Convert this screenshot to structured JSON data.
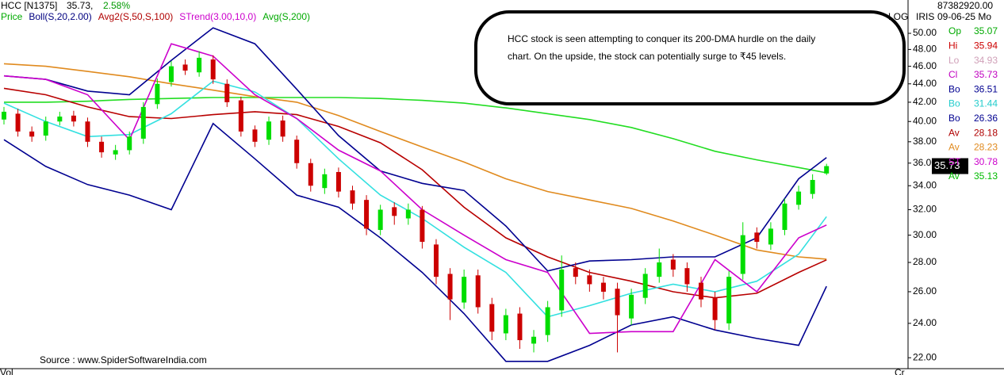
{
  "chart_data": {
    "type": "candlestick",
    "header": {
      "symbol": "HCC [N1375]",
      "last": "35.73,",
      "change": "2.58%",
      "change_color": "#009900"
    },
    "legend": [
      {
        "label": "Price",
        "color": "#00aa00"
      },
      {
        "label": "Boll(S,20,2.00)",
        "color": "#000080"
      },
      {
        "label": "Avg2(S,50,S,100)",
        "color": "#b00000"
      },
      {
        "label": "STrend(3.00,10,0)",
        "color": "#cc00cc"
      },
      {
        "label": "Avg(S,200)",
        "color": "#00aa00"
      }
    ],
    "log_scale": true,
    "scale_labels": [
      "LOG",
      "IRIS"
    ],
    "ylim": [
      21.4,
      54.4
    ],
    "yticks": [
      {
        "value": 22,
        "label": "22.00"
      },
      {
        "value": 24,
        "label": "24.00"
      },
      {
        "value": 26,
        "label": "26.00"
      },
      {
        "value": 28,
        "label": "28.00"
      },
      {
        "value": 30,
        "label": "30.00"
      },
      {
        "value": 32,
        "label": "32.00"
      },
      {
        "value": 34,
        "label": "34.00"
      },
      {
        "value": 36,
        "label": "36.00"
      },
      {
        "value": 38,
        "label": "38.00"
      },
      {
        "value": 40,
        "label": "40.00"
      },
      {
        "value": 42,
        "label": "42.00"
      },
      {
        "value": 44,
        "label": "44.00"
      },
      {
        "value": 46,
        "label": "46.00"
      },
      {
        "value": 48,
        "label": "48.00"
      },
      {
        "value": 50,
        "label": "50.00"
      }
    ],
    "up_color": "#00dd00",
    "down_color": "#cc0000",
    "open": [
      40.2,
      40.8,
      39.0,
      38.6,
      40.0,
      40.6,
      40.0,
      38.0,
      36.8,
      37.2,
      38.3,
      41.8,
      44.2,
      46.2,
      45.3,
      46.8,
      44.0,
      42.2,
      39.2,
      38.2,
      40.1,
      38.2,
      36.0,
      33.8,
      35.2,
      33.6,
      32.8,
      30.4,
      32.2,
      31.3,
      32.0,
      29.3,
      27.2,
      25.3,
      27.1,
      25.2,
      23.4,
      24.6,
      22.8,
      23.3,
      24.8,
      27.6,
      27.1,
      26.6,
      26.2,
      24.3,
      25.6,
      27.0,
      28.2,
      27.6,
      26.6,
      25.6,
      24.0,
      27.2,
      30.2,
      29.3,
      30.4,
      32.4,
      33.3,
      35.07
    ],
    "high": [
      41.5,
      41.3,
      39.5,
      40.5,
      41.0,
      41.1,
      40.4,
      38.5,
      37.7,
      39.0,
      42.0,
      44.6,
      46.6,
      46.8,
      47.8,
      47.3,
      44.5,
      42.6,
      39.6,
      40.5,
      40.6,
      38.6,
      36.4,
      35.5,
      35.6,
      34.0,
      33.2,
      32.4,
      32.6,
      32.5,
      32.3,
      29.7,
      27.6,
      27.5,
      27.5,
      25.6,
      24.9,
      25.0,
      23.6,
      25.4,
      28.5,
      28.0,
      27.5,
      27.0,
      26.6,
      26.2,
      27.6,
      29.0,
      28.6,
      28.0,
      27.0,
      26.0,
      27.4,
      31.0,
      30.6,
      31.0,
      32.9,
      34.0,
      35.0,
      35.94
    ],
    "low": [
      39.7,
      38.5,
      38.0,
      38.1,
      39.6,
      39.5,
      37.5,
      36.5,
      36.3,
      36.8,
      37.8,
      41.3,
      43.7,
      45.0,
      44.8,
      44.0,
      41.5,
      38.5,
      37.5,
      37.7,
      38.0,
      35.5,
      33.5,
      33.3,
      33.0,
      32.0,
      30.0,
      30.0,
      30.8,
      30.8,
      29.0,
      26.5,
      24.2,
      24.9,
      24.6,
      23.0,
      23.0,
      22.5,
      22.3,
      22.9,
      24.4,
      26.5,
      26.0,
      25.5,
      22.3,
      23.9,
      25.2,
      26.6,
      27.0,
      26.0,
      25.0,
      23.6,
      23.6,
      26.8,
      29.0,
      28.9,
      30.0,
      32.0,
      32.9,
      34.93
    ],
    "close": [
      41.0,
      39.0,
      38.5,
      40.0,
      40.5,
      40.0,
      38.0,
      37.0,
      37.2,
      38.5,
      41.5,
      44.0,
      46.0,
      45.5,
      47.0,
      44.5,
      42.0,
      39.0,
      38.0,
      40.0,
      38.5,
      36.0,
      34.0,
      35.0,
      33.5,
      32.5,
      30.5,
      32.0,
      31.5,
      32.0,
      29.5,
      27.0,
      25.5,
      27.0,
      25.0,
      23.5,
      24.5,
      23.0,
      23.2,
      25.0,
      27.5,
      27.0,
      26.5,
      26.0,
      24.5,
      25.8,
      27.2,
      28.0,
      27.5,
      26.5,
      25.5,
      24.2,
      27.0,
      30.0,
      29.5,
      30.5,
      32.5,
      33.5,
      34.5,
      35.73
    ],
    "indicator_x": [
      0,
      3,
      6,
      9,
      12,
      15,
      18,
      21,
      24,
      27,
      30,
      33,
      36,
      39,
      42,
      45,
      48,
      51,
      54,
      57,
      59
    ],
    "indicators": [
      {
        "color": "#22dd22",
        "values": [
          42.0,
          42.0,
          42.1,
          42.3,
          42.4,
          42.5,
          42.5,
          42.5,
          42.5,
          42.4,
          42.2,
          41.9,
          41.4,
          40.8,
          40.2,
          39.4,
          38.3,
          37.1,
          36.3,
          35.6,
          35.13
        ]
      },
      {
        "color": "#e08a1e",
        "values": [
          46.3,
          46.0,
          45.4,
          44.8,
          44.0,
          43.3,
          42.6,
          42.0,
          40.6,
          39.0,
          37.5,
          36.1,
          34.6,
          33.5,
          32.8,
          32.1,
          31.1,
          30.0,
          28.9,
          28.4,
          28.23
        ]
      },
      {
        "color": "#b80000",
        "values": [
          43.5,
          42.8,
          41.5,
          40.5,
          40.3,
          40.7,
          41.0,
          40.7,
          39.5,
          37.9,
          35.4,
          32.2,
          29.8,
          28.4,
          27.3,
          26.7,
          26.0,
          25.6,
          25.9,
          27.3,
          28.18
        ]
      },
      {
        "color": "#33e0e0",
        "values": [
          41.9,
          40.0,
          38.5,
          38.7,
          40.8,
          44.3,
          43.1,
          40.3,
          36.4,
          33.2,
          31.3,
          29.1,
          27.3,
          24.4,
          25.1,
          25.9,
          26.5,
          26.0,
          26.7,
          28.6,
          31.44
        ]
      },
      {
        "color": "#000090",
        "values": [
          44.9,
          44.5,
          43.2,
          42.8,
          46.7,
          50.7,
          48.7,
          43.4,
          38.6,
          35.3,
          34.2,
          33.6,
          30.7,
          27.4,
          28.1,
          28.2,
          28.4,
          28.4,
          29.8,
          34.6,
          36.51
        ]
      },
      {
        "color": "#000090",
        "values": [
          38.2,
          35.7,
          34.1,
          33.2,
          32.0,
          39.8,
          36.4,
          33.2,
          32.2,
          29.8,
          27.3,
          24.6,
          21.8,
          21.8,
          22.7,
          23.9,
          24.4,
          23.6,
          23.1,
          22.7,
          26.36
        ]
      },
      {
        "color": "#cc00cc",
        "values": [
          44.9,
          44.5,
          42.8,
          38.2,
          48.7,
          47.2,
          42.8,
          40.3,
          37.2,
          35.3,
          32.0,
          30.0,
          28.2,
          27.3,
          23.4,
          23.5,
          23.5,
          28.2,
          26.0,
          29.8,
          30.78
        ]
      }
    ],
    "price_label": 35.73,
    "info_panel": {
      "volume": {
        "value": 87382920,
        "label": "87382920.00"
      },
      "date": "09-06-25 Mo",
      "rows": [
        {
          "label": "Op",
          "value": 35.07,
          "color": "#00aa00"
        },
        {
          "label": "Hi",
          "value": 35.94,
          "color": "#cc0000"
        },
        {
          "label": "Lo",
          "value": 34.93,
          "color": "#d0a0b8"
        },
        {
          "label": "Cl",
          "value": 35.73,
          "color": "#c000c0"
        },
        {
          "label": "Bo",
          "value": 36.51,
          "color": "#000090"
        },
        {
          "label": "Bo",
          "value": 31.44,
          "color": "#22cccc"
        },
        {
          "label": "Bo",
          "value": 26.36,
          "color": "#000090"
        },
        {
          "label": "Av",
          "value": 28.18,
          "color": "#b00000"
        },
        {
          "label": "Av",
          "value": 28.23,
          "color": "#e08a1e"
        },
        {
          "label": "ST",
          "value": 30.78,
          "color": "#cc00cc"
        },
        {
          "label": "Av",
          "value": 35.13,
          "color": "#00bb00"
        }
      ]
    },
    "annotation": [
      "HCC stock is seen attempting to conquer its 200-DMA hurdle on the daily",
      "chart. On the upside, the stock can potentially surge to ₹45 levels."
    ],
    "source": "Source : www.SpiderSoftwareIndia.com",
    "footer_labels": [
      "Vol",
      "Cr"
    ]
  }
}
